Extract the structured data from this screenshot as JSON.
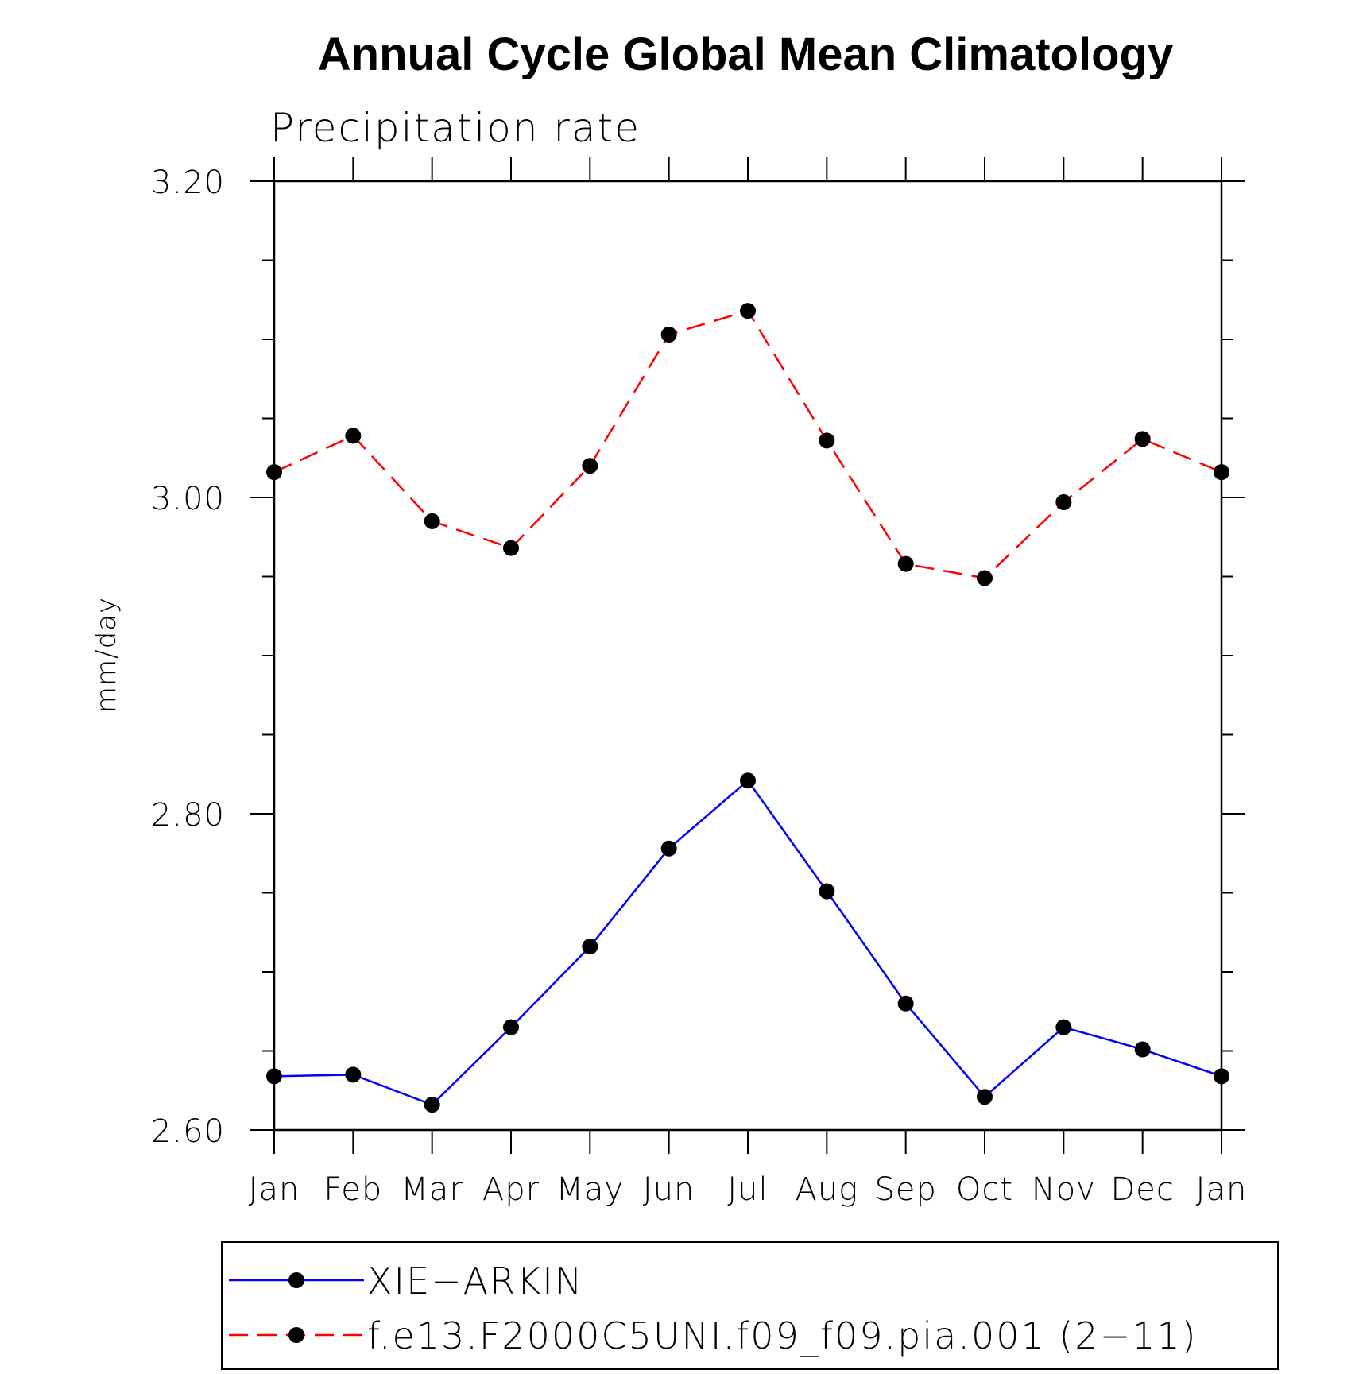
{
  "chart_data": {
    "type": "line",
    "title": "Annual Cycle Global Mean Climatology",
    "subtitle": "Precipitation rate",
    "ylabel": "mm/day",
    "xlabel": "",
    "categories": [
      "Jan",
      "Feb",
      "Mar",
      "Apr",
      "May",
      "Jun",
      "Jul",
      "Aug",
      "Sep",
      "Oct",
      "Nov",
      "Dec",
      "Jan"
    ],
    "ylim": [
      2.6,
      3.2
    ],
    "yticks": [
      "2.60",
      "2.80",
      "3.00",
      "3.20"
    ],
    "y_minor_step": 0.05,
    "legend_position": "bottom",
    "series": [
      {
        "name": "XIE−ARKIN",
        "color": "#0000ff",
        "line_style": "solid",
        "marker": "filled-circle",
        "values": [
          2.634,
          2.635,
          2.616,
          2.665,
          2.716,
          2.778,
          2.821,
          2.751,
          2.68,
          2.621,
          2.665,
          2.651,
          2.634
        ]
      },
      {
        "name": "f.e13.F2000C5UNI.f09_f09.pia.001 (2−11)",
        "color": "#ff0000",
        "line_style": "dashed",
        "marker": "filled-circle",
        "values": [
          3.016,
          3.039,
          2.985,
          2.968,
          3.02,
          3.103,
          3.118,
          3.036,
          2.958,
          2.949,
          2.997,
          3.037,
          3.016
        ]
      }
    ]
  }
}
